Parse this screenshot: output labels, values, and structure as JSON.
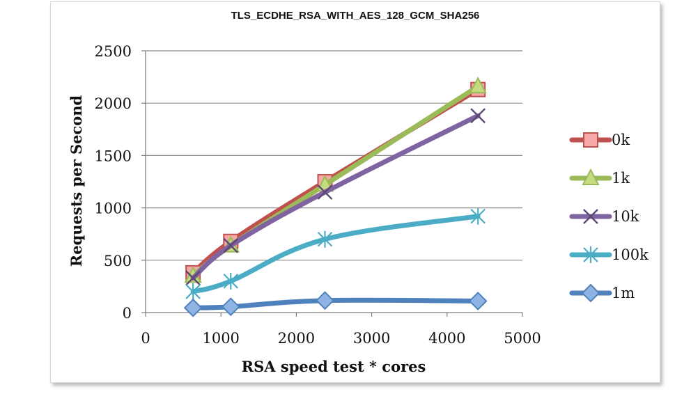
{
  "chart_data": {
    "type": "line",
    "title": "TLS_ECDHE_RSA_WITH_AES_128_GCM_SHA256",
    "xlabel": "RSA speed test * cores",
    "ylabel": "Requests per Second",
    "xlim": [
      0,
      5000
    ],
    "ylim": [
      0,
      2500
    ],
    "xticks": [
      0,
      1000,
      2000,
      3000,
      4000,
      5000
    ],
    "xtick_labels": [
      "0",
      "1000",
      "2000",
      "3000",
      "4000",
      "5000"
    ],
    "yticks": [
      0,
      500,
      1000,
      1500,
      2000,
      2500
    ],
    "ytick_labels": [
      "0",
      "500",
      "1000",
      "1500",
      "2000",
      "2500"
    ],
    "grid": "horizontal",
    "legend_position": "right",
    "x": [
      630,
      1130,
      2380,
      4410
    ],
    "series": [
      {
        "name": "0k",
        "values": [
          380,
          680,
          1250,
          2130
        ],
        "color": "#c0504d",
        "marker": "square"
      },
      {
        "name": "1k",
        "values": [
          350,
          640,
          1220,
          2160
        ],
        "color": "#9bbb59",
        "marker": "triangle"
      },
      {
        "name": "10k",
        "values": [
          330,
          640,
          1150,
          1880
        ],
        "color": "#8064a2",
        "marker": "x"
      },
      {
        "name": "100k",
        "values": [
          200,
          300,
          700,
          920
        ],
        "color": "#4bacc6",
        "marker": "asterisk"
      },
      {
        "name": "1m",
        "values": [
          45,
          55,
          115,
          110
        ],
        "color": "#4f81bd",
        "marker": "diamond"
      }
    ]
  }
}
